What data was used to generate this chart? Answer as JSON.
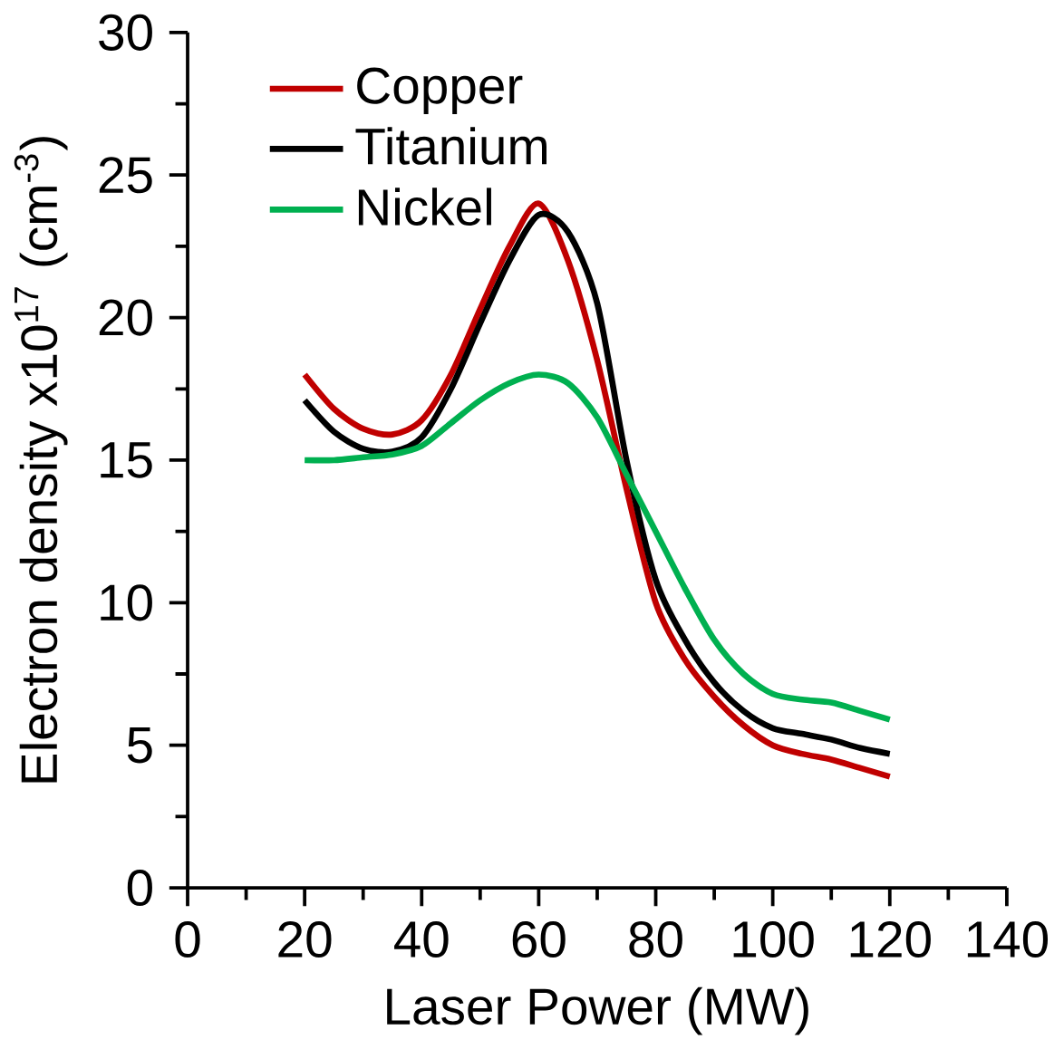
{
  "chart_data": {
    "type": "line",
    "xlabel": "Laser Power (MW)",
    "ylabel": "Electron density x10$^{17}$ (cm$^{-3}$)",
    "xlim": [
      0,
      140
    ],
    "xticks": [
      0,
      20,
      40,
      60,
      80,
      100,
      120,
      140
    ],
    "ylim": [
      0,
      30
    ],
    "yticks": [
      0,
      5,
      10,
      15,
      20,
      25,
      30
    ],
    "grid": false,
    "legend": "top left",
    "marker": "none",
    "line_style": "solid",
    "x": [
      20,
      25,
      30,
      35,
      40,
      45,
      50,
      55,
      60,
      65,
      70,
      75,
      80,
      85,
      90,
      95,
      100,
      105,
      110,
      115,
      120
    ],
    "series": [
      {
        "name": "Copper",
        "color": "#c00000",
        "values": [
          18.0,
          16.8,
          16.1,
          15.9,
          16.4,
          18.0,
          20.3,
          22.5,
          24.0,
          22.0,
          18.5,
          14.0,
          10.0,
          8.0,
          6.7,
          5.7,
          5.0,
          4.7,
          4.5,
          4.2,
          3.9
        ]
      },
      {
        "name": "Titanium",
        "color": "#000000",
        "values": [
          17.1,
          16.0,
          15.4,
          15.3,
          15.8,
          17.5,
          19.8,
          22.0,
          23.6,
          23.0,
          20.5,
          15.0,
          10.8,
          8.7,
          7.2,
          6.2,
          5.6,
          5.4,
          5.2,
          4.9,
          4.7
        ]
      },
      {
        "name": "Nickel",
        "color": "#00b050",
        "values": [
          15.0,
          15.0,
          15.1,
          15.2,
          15.5,
          16.3,
          17.1,
          17.7,
          18.0,
          17.7,
          16.5,
          14.5,
          12.5,
          10.5,
          8.7,
          7.5,
          6.8,
          6.6,
          6.5,
          6.2,
          5.9
        ]
      }
    ]
  }
}
